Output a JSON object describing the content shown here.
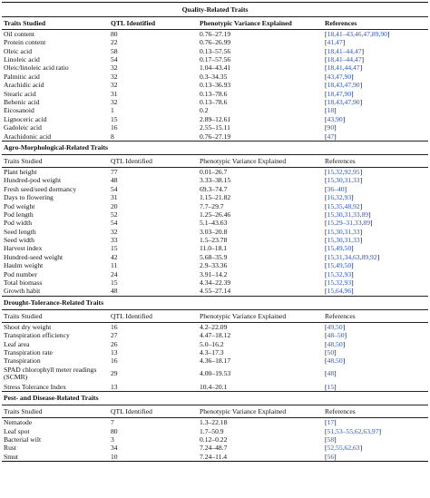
{
  "table": {
    "columns": [
      "Traits Studied",
      "QTL Identified",
      "Phenotypic Variance Explained",
      "References"
    ],
    "sections": [
      {
        "title": "Quality-Related Traits",
        "header_bold": true,
        "rows": [
          {
            "trait": "Oil content",
            "qtl": "80",
            "pve": "0.76–27.19",
            "refs": "18,41–43,46,47,89,90"
          },
          {
            "trait": "Protein content",
            "qtl": "22",
            "pve": "0.76–26.99",
            "refs": "41,47"
          },
          {
            "trait": "Oleic acid",
            "qtl": "58",
            "pve": "0.13–57.56",
            "refs": "18,41–44,47"
          },
          {
            "trait": "Linoleic acid",
            "qtl": "54",
            "pve": "0.17–57.56",
            "refs": "18,41–44,47"
          },
          {
            "trait": "Oleic/linoleic acid ratio",
            "qtl": "32",
            "pve": "1.04–43.41",
            "refs": "18,41,44,47"
          },
          {
            "trait": "Palmitic acid",
            "qtl": "32",
            "pve": "0.3–34.35",
            "refs": "43,47,90"
          },
          {
            "trait": "Arachidic acid",
            "qtl": "32",
            "pve": "0.13–36.93",
            "refs": "18,43,47,90"
          },
          {
            "trait": "Stearic acid",
            "qtl": "31",
            "pve": "0.13–78.6",
            "refs": "18,47,90"
          },
          {
            "trait": "Behenic acid",
            "qtl": "32",
            "pve": "0.13–78.6",
            "refs": "18,43,47,90"
          },
          {
            "trait": "Eicosanoid",
            "qtl": "1",
            "pve": "0.2",
            "refs": "18"
          },
          {
            "trait": "Lignoceric acid",
            "qtl": "15",
            "pve": "2.89–12.61",
            "refs": "43,90"
          },
          {
            "trait": "Gadoleic acid",
            "qtl": "16",
            "pve": "2.55–15.11",
            "refs": "90"
          },
          {
            "trait": "Arachidonic acid",
            "qtl": "8",
            "pve": "0.76–27.19",
            "refs": "47"
          }
        ]
      },
      {
        "title": "Agro-Morphological-Related Traits",
        "header_bold": false,
        "rows": [
          {
            "trait": "Plant height",
            "qtl": "77",
            "pve": "0.01–26.7",
            "refs": "15,32,92,95"
          },
          {
            "trait": "Hundred-pod weight",
            "qtl": "48",
            "pve": "3.33–38.15",
            "refs": "15,30,31,33"
          },
          {
            "trait": "Fresh seed/seed dormancy",
            "qtl": "54",
            "pve": "69.3–74.7",
            "refs": "36–40"
          },
          {
            "trait": "Days to flowering",
            "qtl": "31",
            "pve": "1.15–21.82",
            "refs": "16,32,93"
          },
          {
            "trait": "Pod weight",
            "qtl": "20",
            "pve": "7.7–29.7",
            "refs": "15,35,48,92"
          },
          {
            "trait": "Pod length",
            "qtl": "52",
            "pve": "1.25–26.46",
            "refs": "15,30,31,33,89"
          },
          {
            "trait": "Pod width",
            "qtl": "54",
            "pve": "5.1–43.63",
            "refs": "15,29–31,33,89"
          },
          {
            "trait": "Seed length",
            "qtl": "32",
            "pve": "3.03–20.8",
            "refs": "15,30,31,33"
          },
          {
            "trait": "Seed width",
            "qtl": "33",
            "pve": "1.5–23.78",
            "refs": "15,30,31,33"
          },
          {
            "trait": "Harvest index",
            "qtl": "15",
            "pve": "11.0–18.1",
            "refs": "15,49,50"
          },
          {
            "trait": "Hundred-seed weight",
            "qtl": "42",
            "pve": "5.68–35.9",
            "refs": "15,31,34,63,89,92"
          },
          {
            "trait": "Haulm weight",
            "qtl": "11",
            "pve": "2.9–33.36",
            "refs": "15,49,50"
          },
          {
            "trait": "Pod number",
            "qtl": "24",
            "pve": "3.91–14.2",
            "refs": "15,32,93"
          },
          {
            "trait": "Total biomass",
            "qtl": "15",
            "pve": "4.34–22.39",
            "refs": "15,32,93"
          },
          {
            "trait": "Growth habit",
            "qtl": "48",
            "pve": "4.55–27.14",
            "refs": "15,64,96"
          }
        ]
      },
      {
        "title": "Drought-Tolerance-Related Traits",
        "header_bold": false,
        "rows": [
          {
            "trait": "Shoot dry weight",
            "qtl": "16",
            "pve": "4.2–22.09",
            "refs": "49,50"
          },
          {
            "trait": "Transpiration efficiency",
            "qtl": "27",
            "pve": "4.47–18.12",
            "refs": "48–50"
          },
          {
            "trait": "Leaf area",
            "qtl": "26",
            "pve": "5.0–16.2",
            "refs": "48,50"
          },
          {
            "trait": "Transpiration rate",
            "qtl": "13",
            "pve": "4.3–17.3",
            "refs": "50"
          },
          {
            "trait": "Transpiration",
            "qtl": "16",
            "pve": "4.36–18.17",
            "refs": "48,50"
          },
          {
            "trait": "SPAD chlorophyll meter readings (SCMR)",
            "qtl": "29",
            "pve": "4.00–19.53",
            "refs": "48",
            "tall": true
          },
          {
            "trait": "Stress Tolerance Index",
            "qtl": "13",
            "pve": "10.4–20.1",
            "refs": "15"
          }
        ]
      },
      {
        "title": "Pest- and Disease-Related Traits",
        "header_bold": false,
        "rows": [
          {
            "trait": "Nematode",
            "qtl": "7",
            "pve": "1.3–22.18",
            "refs": "17"
          },
          {
            "trait": "Leaf spot",
            "qtl": "80",
            "pve": "1.7–50.9",
            "refs": "51,53–55,62,63,97"
          },
          {
            "trait": "Bacterial wilt",
            "qtl": "3",
            "pve": "0.12–0.22",
            "refs": "58"
          },
          {
            "trait": "Rust",
            "qtl": "34",
            "pve": "7.24–48.7",
            "refs": "52,55,62,63"
          },
          {
            "trait": "Smut",
            "qtl": "10",
            "pve": "7.24–11.4",
            "refs": "56"
          }
        ]
      }
    ]
  }
}
